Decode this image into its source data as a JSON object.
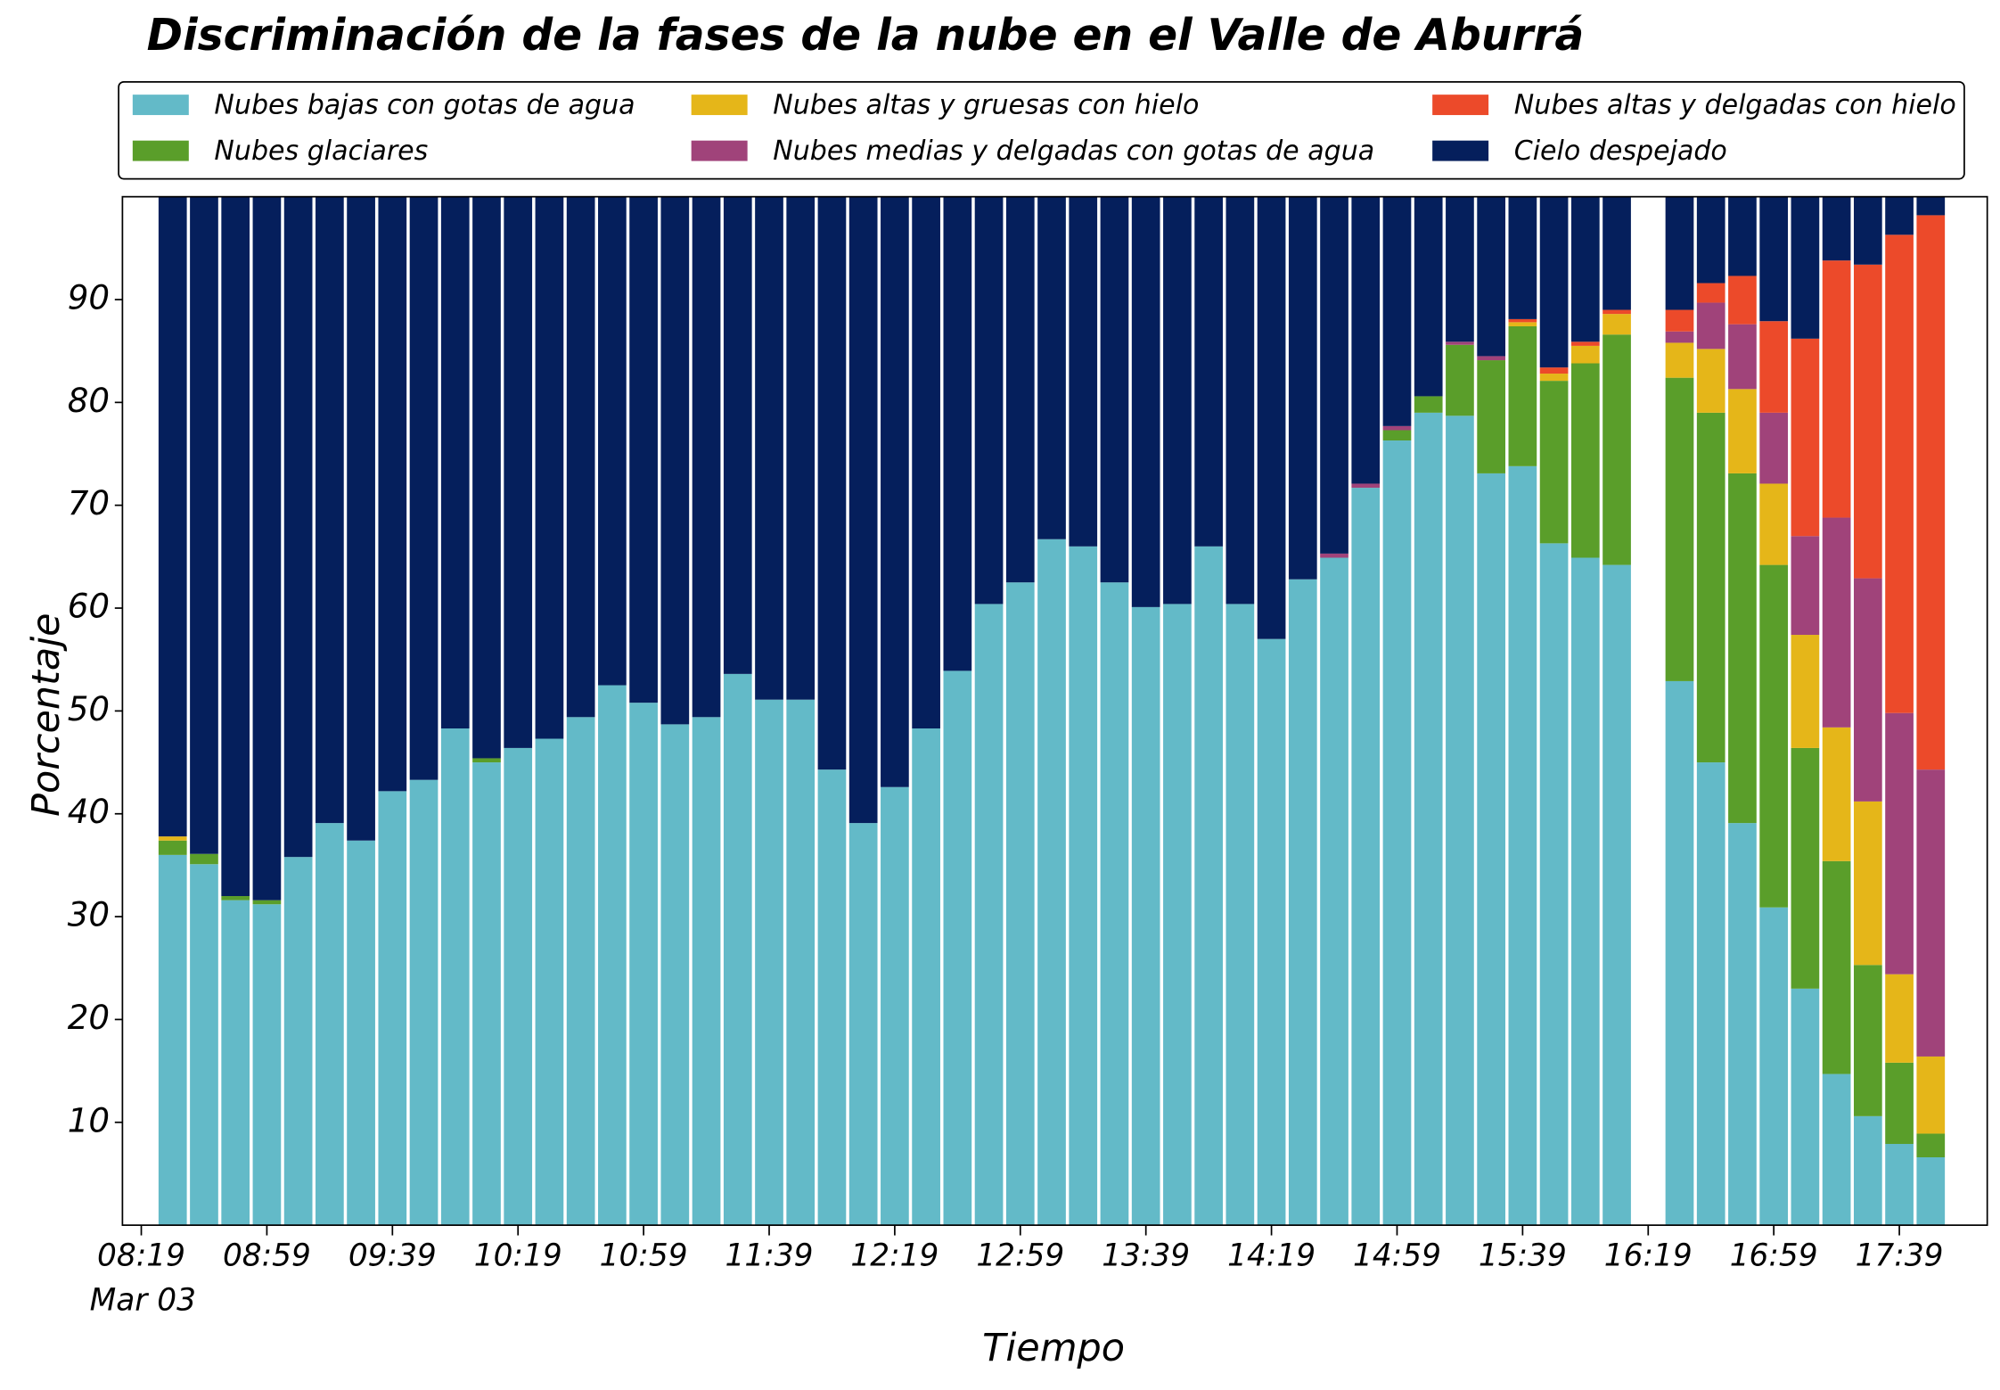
{
  "chart_data": {
    "type": "stacked_bar",
    "title": "Discriminación de la fases de la nube en el Valle de Aburrá",
    "x_label": "Tiempo",
    "y_label": "Porcentaje",
    "date_label": "Mar 03",
    "x": [
      "08:29",
      "08:39",
      "08:49",
      "08:59",
      "09:09",
      "09:19",
      "09:29",
      "09:39",
      "09:49",
      "09:59",
      "10:09",
      "10:19",
      "10:29",
      "10:39",
      "10:49",
      "10:59",
      "11:09",
      "11:19",
      "11:29",
      "11:39",
      "11:49",
      "11:59",
      "12:09",
      "12:19",
      "12:29",
      "12:39",
      "12:49",
      "12:59",
      "13:09",
      "13:19",
      "13:29",
      "13:39",
      "13:49",
      "13:59",
      "14:09",
      "14:19",
      "14:29",
      "14:39",
      "14:49",
      "14:59",
      "15:09",
      "15:19",
      "15:29",
      "15:39",
      "15:49",
      "15:59",
      "16:09",
      "16:29",
      "16:39",
      "16:49",
      "16:59",
      "17:09",
      "17:19",
      "17:29",
      "17:39",
      "17:49"
    ],
    "xlim": [
      "08:13",
      "18:07"
    ],
    "xticks": [
      "08:19",
      "08:59",
      "09:39",
      "10:19",
      "10:59",
      "11:39",
      "12:19",
      "12:59",
      "13:39",
      "14:19",
      "14:59",
      "15:39",
      "16:19",
      "16:59",
      "17:39"
    ],
    "ylim": [
      0,
      100
    ],
    "yticks": [
      10,
      20,
      30,
      40,
      50,
      60,
      70,
      80,
      90
    ],
    "legend": "top",
    "series": [
      {
        "name": "Nubes bajas con gotas de agua",
        "color": "#63bac8",
        "values": [
          36,
          35.1,
          31.6,
          31.2,
          35.8,
          39.1,
          37.4,
          42.2,
          43.3,
          48.3,
          45,
          46.4,
          47.3,
          49.4,
          52.5,
          50.8,
          48.7,
          49.4,
          53.6,
          51.1,
          51.1,
          44.3,
          39.1,
          42.6,
          48.3,
          53.9,
          60.4,
          62.5,
          66.7,
          66,
          62.5,
          60.1,
          60.4,
          66,
          60.4,
          57,
          62.8,
          64.9,
          71.7,
          76.3,
          79,
          78.7,
          73.1,
          73.8,
          66.3,
          64.9,
          64.2,
          52.9,
          45,
          39.1,
          30.9,
          23,
          14.7,
          10.6,
          7.9,
          6.6
        ]
      },
      {
        "name": "Nubes glaciares",
        "color": "#5a9e2a",
        "values": [
          1.4,
          1,
          0.4,
          0.4,
          0,
          0,
          0,
          0,
          0,
          0,
          0.4,
          0,
          0,
          0,
          0,
          0,
          0,
          0,
          0,
          0,
          0,
          0,
          0,
          0,
          0,
          0,
          0,
          0,
          0,
          0,
          0,
          0,
          0,
          0,
          0,
          0,
          0,
          0,
          0,
          1,
          1.6,
          6.9,
          11,
          13.6,
          15.8,
          18.9,
          22.4,
          29.5,
          34,
          34,
          33.3,
          23.4,
          20.7,
          14.7,
          7.9,
          2.3
        ]
      },
      {
        "name": "Nubes altas y gruesas con hielo",
        "color": "#e5b619",
        "values": [
          0.4,
          0,
          0,
          0,
          0,
          0,
          0,
          0,
          0,
          0,
          0,
          0,
          0,
          0,
          0,
          0,
          0,
          0,
          0,
          0,
          0,
          0,
          0,
          0,
          0,
          0,
          0,
          0,
          0,
          0,
          0,
          0,
          0,
          0,
          0,
          0,
          0,
          0,
          0,
          0,
          0,
          0,
          0,
          0.4,
          0.7,
          1.7,
          2,
          3.4,
          6.2,
          8.2,
          7.9,
          11,
          13,
          15.9,
          8.6,
          7.5
        ]
      },
      {
        "name": "Nubes medias y delgadas con gotas de agua",
        "color": "#a0437a",
        "values": [
          0,
          0,
          0,
          0,
          0,
          0,
          0,
          0,
          0,
          0,
          0,
          0,
          0,
          0,
          0,
          0,
          0,
          0,
          0,
          0,
          0,
          0,
          0,
          0,
          0,
          0,
          0,
          0,
          0,
          0,
          0,
          0,
          0,
          0,
          0,
          0,
          0,
          0.4,
          0.4,
          0.4,
          0,
          0.3,
          0.4,
          0,
          0,
          0,
          0,
          1.1,
          4.5,
          6.3,
          6.9,
          9.6,
          20.4,
          21.7,
          25.4,
          27.9
        ]
      },
      {
        "name": "Nubes altas y delgadas con hielo",
        "color": "#ec4a2a",
        "values": [
          0,
          0,
          0,
          0,
          0,
          0,
          0,
          0,
          0,
          0,
          0,
          0,
          0,
          0,
          0,
          0,
          0,
          0,
          0,
          0,
          0,
          0,
          0,
          0,
          0,
          0,
          0,
          0,
          0,
          0,
          0,
          0,
          0,
          0,
          0,
          0,
          0,
          0,
          0,
          0,
          0,
          0,
          0,
          0.3,
          0.6,
          0.4,
          0.4,
          2.1,
          1.9,
          4.7,
          8.9,
          19.2,
          25,
          30.5,
          46.5,
          53.9
        ]
      },
      {
        "name": "Cielo despejado",
        "color": "#051f5c",
        "values": [
          62.2,
          63.9,
          68,
          68.4,
          64.2,
          60.9,
          62.6,
          57.8,
          56.7,
          51.7,
          54.6,
          53.6,
          52.7,
          50.6,
          47.5,
          49.2,
          51.3,
          50.6,
          46.4,
          48.9,
          48.9,
          55.7,
          60.9,
          57.4,
          51.7,
          46.1,
          39.6,
          37.5,
          33.3,
          34,
          37.5,
          39.9,
          39.6,
          34,
          39.6,
          43,
          37.2,
          34.7,
          27.9,
          22.3,
          19.4,
          14.1,
          15.5,
          11.9,
          16.6,
          14.1,
          11,
          11,
          8.4,
          7.7,
          12.1,
          13.8,
          6.2,
          6.6,
          3.7,
          1.8
        ]
      }
    ]
  }
}
